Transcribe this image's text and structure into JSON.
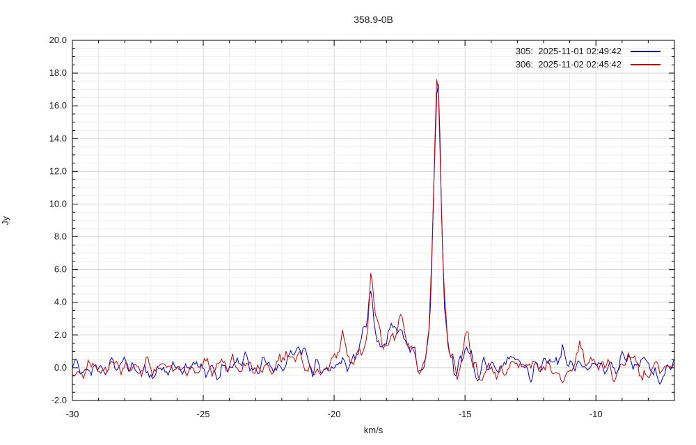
{
  "title": "358.9-0B",
  "axes": {
    "x": {
      "label": "km/s",
      "min": -30,
      "max": -7,
      "minor_step": 1,
      "ticks": [
        {
          "v": -30,
          "label": "-30"
        },
        {
          "v": -25,
          "label": "-25"
        },
        {
          "v": -20,
          "label": "-20"
        },
        {
          "v": -15,
          "label": "-15"
        },
        {
          "v": -10,
          "label": "-10"
        }
      ]
    },
    "y": {
      "label": "Jy",
      "min": -2,
      "max": 20,
      "minor_step": 0.5,
      "ticks": [
        {
          "v": -2,
          "label": "-2.0"
        },
        {
          "v": 0,
          "label": "0.0"
        },
        {
          "v": 2,
          "label": "2.0"
        },
        {
          "v": 4,
          "label": "4.0"
        },
        {
          "v": 6,
          "label": "6.0"
        },
        {
          "v": 8,
          "label": "8.0"
        },
        {
          "v": 10,
          "label": "10.0"
        },
        {
          "v": 12,
          "label": "12.0"
        },
        {
          "v": 14,
          "label": "14.0"
        },
        {
          "v": 16,
          "label": "16.0"
        },
        {
          "v": 18,
          "label": "18.0"
        },
        {
          "v": 20,
          "label": "20.0"
        }
      ]
    }
  },
  "legend": {
    "entries": [
      {
        "id": "305",
        "label": "305:  2025-11-01 02:49:42",
        "color": "#0000c8"
      },
      {
        "id": "306",
        "label": "306:  2025-11-02 02:45:42",
        "color": "#c80000"
      }
    ]
  },
  "colors": {
    "grid_major": "#d4d4d4",
    "grid_minor": "#eeeeee",
    "axis": "#000000",
    "text": "#1a1a1a"
  },
  "chart_data": {
    "type": "line",
    "title": "358.9-0B",
    "xlabel": "km/s",
    "ylabel": "Jy",
    "xlim": [
      -30,
      -7
    ],
    "ylim": [
      -2,
      20
    ],
    "grid": {
      "major": true,
      "minor": true
    },
    "legend_position": "top-right-inside",
    "peaks": [
      {
        "v_kms": -18.6,
        "flux_jy_306": 5.9,
        "flux_jy_305": 5.0
      },
      {
        "v_kms": -17.45,
        "flux_jy_306": 3.2,
        "flux_jy_305": 2.9
      },
      {
        "v_kms": -16.05,
        "flux_jy_305": 18.4,
        "flux_jy_306": 18.3
      }
    ],
    "sample_step_kms": 0.06,
    "noise_sigma_jy": 0.32,
    "series": [
      {
        "name": "305",
        "color": "#0000c8",
        "seed": 1305,
        "noise_sigma": 0.55,
        "noise_smooth": 3,
        "anchors": [
          [
            -30,
            -0.5
          ],
          [
            -29.85,
            0.2
          ],
          [
            -29.6,
            0
          ],
          [
            -22.2,
            0
          ],
          [
            -21.35,
            1.3
          ],
          [
            -21.0,
            0.1
          ],
          [
            -20.6,
            0
          ],
          [
            -20.0,
            0.35
          ],
          [
            -19.6,
            0.55
          ],
          [
            -19.2,
            0.5
          ],
          [
            -18.95,
            1.5
          ],
          [
            -18.78,
            2.4
          ],
          [
            -18.63,
            5.0
          ],
          [
            -18.5,
            3.4
          ],
          [
            -18.4,
            2.2
          ],
          [
            -18.2,
            1.15
          ],
          [
            -18.05,
            1.3
          ],
          [
            -17.85,
            2.1
          ],
          [
            -17.66,
            2.75
          ],
          [
            -17.5,
            2.5
          ],
          [
            -17.3,
            1.7
          ],
          [
            -17.05,
            1.0
          ],
          [
            -16.8,
            0.35
          ],
          [
            -16.6,
            0.3
          ],
          [
            -16.45,
            1.2
          ],
          [
            -16.33,
            3.2
          ],
          [
            -16.22,
            9.5
          ],
          [
            -16.12,
            15.5
          ],
          [
            -16.04,
            18.35
          ],
          [
            -15.97,
            15.0
          ],
          [
            -15.88,
            8.0
          ],
          [
            -15.78,
            3.2
          ],
          [
            -15.6,
            1.0
          ],
          [
            -15.4,
            -0.7
          ],
          [
            -15.2,
            0.3
          ],
          [
            -15.0,
            0.8
          ],
          [
            -14.78,
            1.0
          ],
          [
            -14.5,
            -0.6
          ],
          [
            -14.3,
            0.2
          ],
          [
            -13.6,
            0.1
          ],
          [
            -13.15,
            0.6
          ],
          [
            -12.6,
            -0.2
          ],
          [
            -12.0,
            0.1
          ],
          [
            -11.45,
            0.2
          ],
          [
            -11.28,
            1.7
          ],
          [
            -11.1,
            0.2
          ],
          [
            -10.6,
            0
          ],
          [
            -9.5,
            0
          ],
          [
            -8.0,
            0.2
          ],
          [
            -7.6,
            -0.6
          ],
          [
            -7.2,
            0.5
          ],
          [
            -7,
            0.6
          ]
        ]
      },
      {
        "name": "306",
        "color": "#c80000",
        "seed": 2306,
        "noise_sigma": 0.55,
        "noise_smooth": 3,
        "anchors": [
          [
            -30,
            -0.9
          ],
          [
            -29.8,
            -0.35
          ],
          [
            -29.5,
            0.1
          ],
          [
            -29.2,
            0
          ],
          [
            -22.2,
            0
          ],
          [
            -21.3,
            1.1
          ],
          [
            -20.95,
            0.1
          ],
          [
            -20.55,
            -0.35
          ],
          [
            -20.0,
            0.5
          ],
          [
            -19.67,
            1.9
          ],
          [
            -19.45,
            0.4
          ],
          [
            -19.15,
            0.6
          ],
          [
            -18.9,
            1.9
          ],
          [
            -18.75,
            2.6
          ],
          [
            -18.6,
            5.9
          ],
          [
            -18.47,
            3.6
          ],
          [
            -18.35,
            2.4
          ],
          [
            -18.15,
            1.25
          ],
          [
            -17.95,
            1.5
          ],
          [
            -17.7,
            2.1
          ],
          [
            -17.42,
            3.15
          ],
          [
            -17.2,
            1.5
          ],
          [
            -16.95,
            0.8
          ],
          [
            -16.7,
            0.1
          ],
          [
            -16.55,
            0.5
          ],
          [
            -16.38,
            2.2
          ],
          [
            -16.27,
            6.5
          ],
          [
            -16.16,
            13.0
          ],
          [
            -16.07,
            18.25
          ],
          [
            -15.99,
            16.0
          ],
          [
            -15.9,
            9.5
          ],
          [
            -15.8,
            4.5
          ],
          [
            -15.65,
            1.3
          ],
          [
            -15.45,
            -0.2
          ],
          [
            -15.3,
            -0.6
          ],
          [
            -15.15,
            0.5
          ],
          [
            -14.92,
            2.0
          ],
          [
            -14.7,
            0.3
          ],
          [
            -14.35,
            -0.5
          ],
          [
            -13.9,
            0.2
          ],
          [
            -13.5,
            -0.6
          ],
          [
            -13.1,
            0.2
          ],
          [
            -12.5,
            0
          ],
          [
            -11.8,
            0.3
          ],
          [
            -11.3,
            -0.3
          ],
          [
            -10.85,
            0.2
          ],
          [
            -10.62,
            1.4
          ],
          [
            -10.38,
            0.1
          ],
          [
            -9.6,
            0
          ],
          [
            -8.6,
            0.3
          ],
          [
            -8.1,
            -0.3
          ],
          [
            -7.5,
            0.2
          ],
          [
            -7,
            0.3
          ]
        ]
      }
    ]
  }
}
